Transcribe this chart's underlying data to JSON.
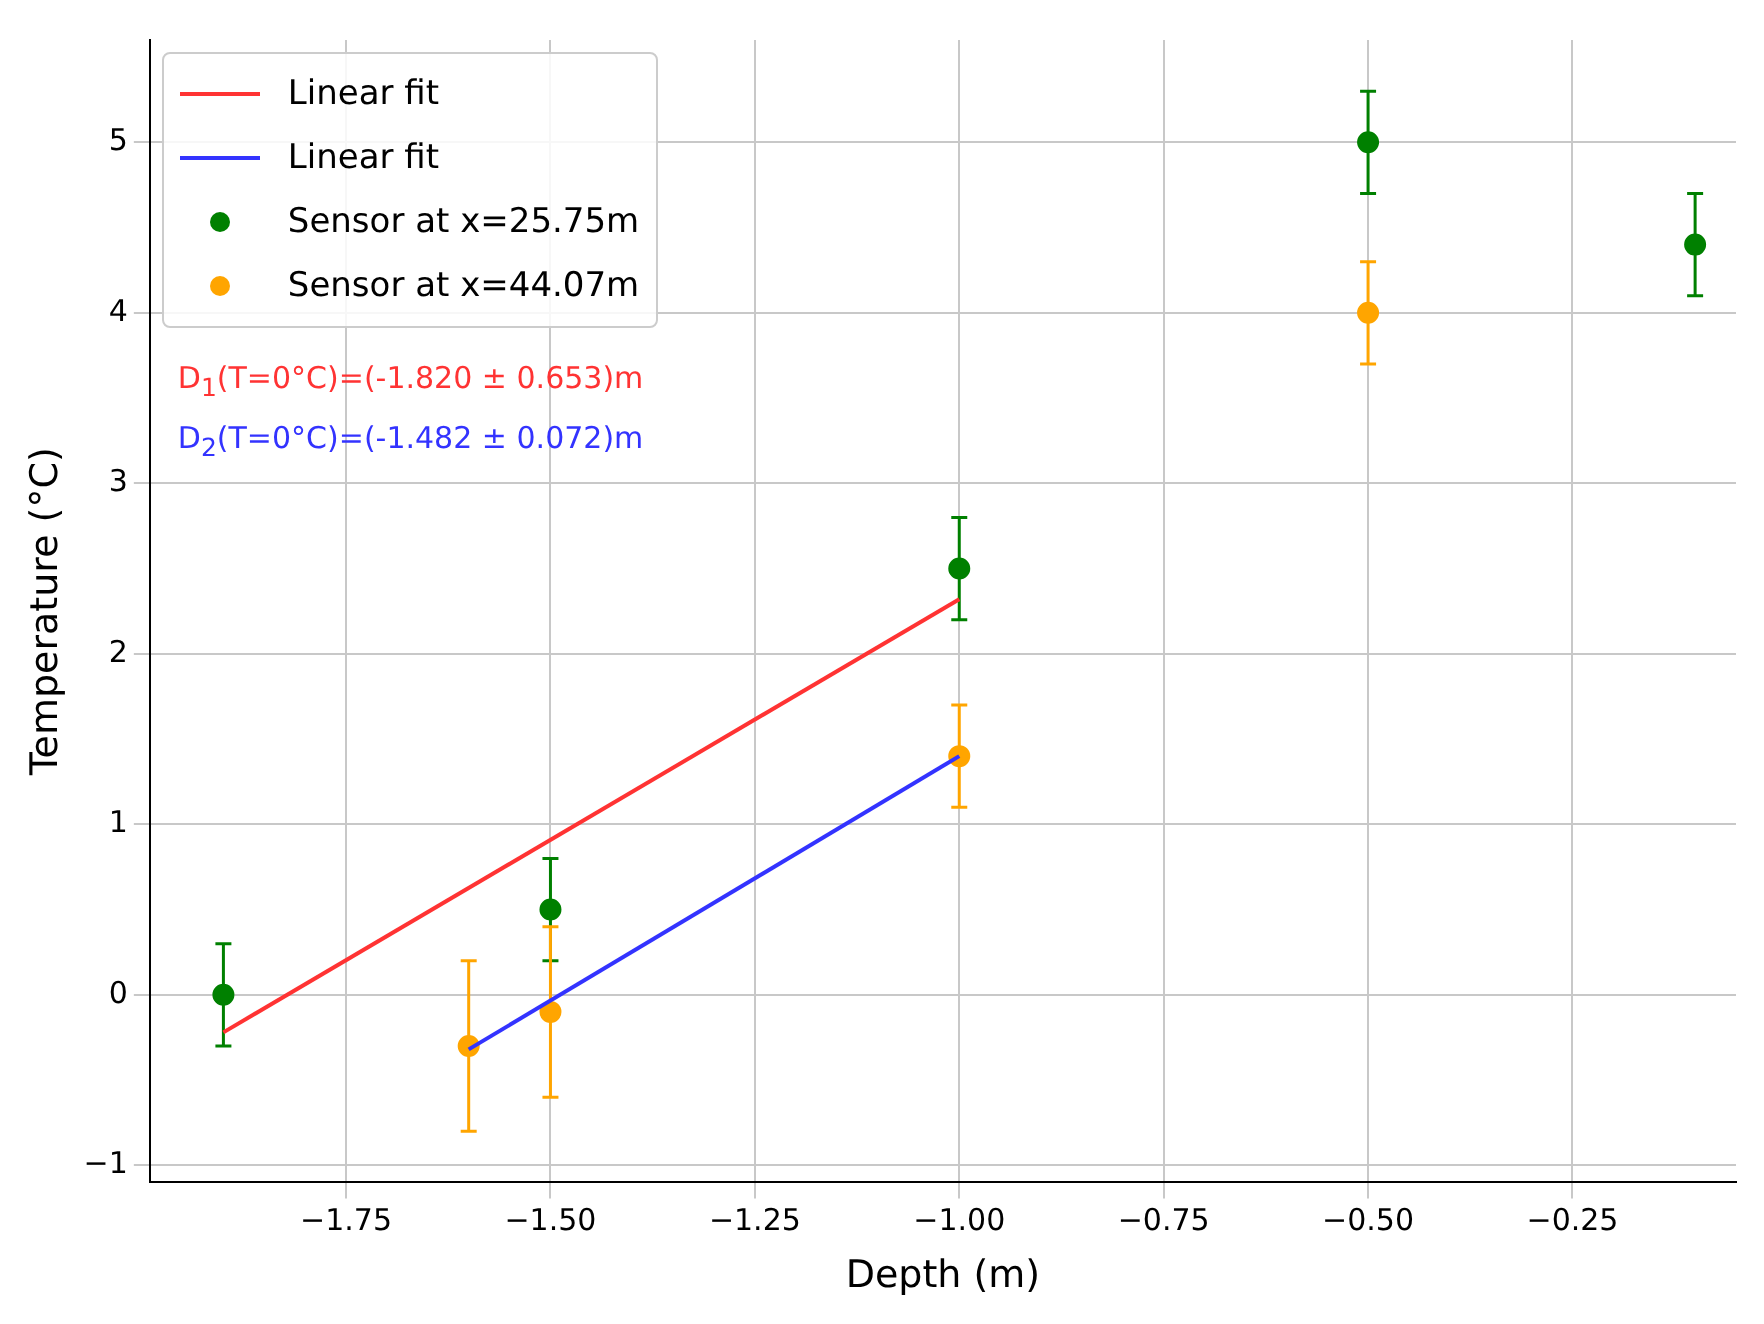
{
  "chart_data": {
    "type": "scatter",
    "xlabel": "Depth (m)",
    "ylabel": "Temperature (°C)",
    "xlim": [
      -1.99,
      -0.05
    ],
    "ylim": [
      -1.1,
      5.6
    ],
    "xticks": [
      {
        "value": -1.75,
        "label": "−1.75"
      },
      {
        "value": -1.5,
        "label": "−1.50"
      },
      {
        "value": -1.25,
        "label": "−1.25"
      },
      {
        "value": -1.0,
        "label": "−1.00"
      },
      {
        "value": -0.75,
        "label": "−0.75"
      },
      {
        "value": -0.5,
        "label": "−0.50"
      },
      {
        "value": -0.25,
        "label": "−0.25"
      }
    ],
    "yticks": [
      {
        "value": -1,
        "label": "−1"
      },
      0,
      1,
      2,
      3,
      4,
      5
    ],
    "grid": true,
    "legend": "top left",
    "series": [
      {
        "name": "Linear fit",
        "type": "line",
        "marker": "none",
        "color": "#ff3333",
        "x": [
          -1.9,
          -1.0
        ],
        "values": [
          -0.22,
          2.32
        ]
      },
      {
        "name": "Linear fit",
        "type": "line",
        "marker": "none",
        "color": "#3333ff",
        "x": [
          -1.6,
          -1.0
        ],
        "values": [
          -0.32,
          1.4
        ]
      },
      {
        "name": "Sensor at x=25.75m",
        "type": "scatter",
        "marker": "circle",
        "color": "#008000",
        "x": [
          -1.9,
          -1.5,
          -1.0,
          -0.5,
          -0.1
        ],
        "values": [
          0,
          0.5,
          2.5,
          5.0,
          4.4
        ],
        "errors": [
          0.3,
          0.3,
          0.3,
          0.3,
          0.3
        ]
      },
      {
        "name": "Sensor at x=44.07m",
        "type": "scatter",
        "marker": "circle",
        "color": "#ffa500",
        "x": [
          -1.6,
          -1.5,
          -1.0,
          -0.5
        ],
        "values": [
          -0.3,
          -0.1,
          1.4,
          4.0
        ],
        "errors": [
          0.5,
          0.5,
          0.3,
          0.3
        ]
      }
    ],
    "annotations": [
      "D$_{1}$(T=0°C)=(-1.820 ± 0.653)m",
      "D$_{2}$(T=0°C)=(-1.482 ± 0.072)m"
    ]
  }
}
